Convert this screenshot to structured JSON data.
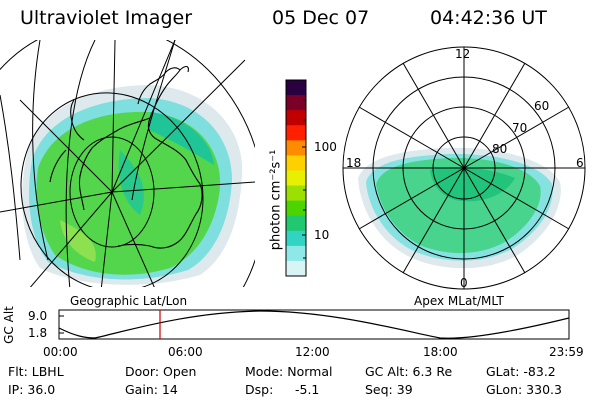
{
  "header": {
    "instrument": "Ultraviolet Imager",
    "date": "05 Dec 07",
    "time": "04:42:36 UT"
  },
  "geo_panel": {
    "label": "Geographic Lat/Lon"
  },
  "apex_panel": {
    "label": "Apex MLat/MLT",
    "lat_labels": [
      "80",
      "70",
      "60"
    ],
    "mlt_labels": [
      "12",
      "18",
      "6",
      "0"
    ]
  },
  "colorbar": {
    "unit_label": "photon cm⁻²s⁻¹",
    "tick_labels": [
      "100",
      "10"
    ],
    "colors": [
      "#2a0040",
      "#7a0028",
      "#c00000",
      "#ff2000",
      "#ff8c00",
      "#ffd000",
      "#e6f000",
      "#9be000",
      "#4cd400",
      "#20c870",
      "#30d4c0",
      "#8fe8e8",
      "#d8f4f4"
    ]
  },
  "orbit_plot": {
    "ylabel": "GC Alt",
    "y_ticks": [
      "9.0",
      "1.8"
    ],
    "x_ticks": [
      "00:00",
      "06:00",
      "12:00",
      "18:00",
      "23:59"
    ],
    "current_marker_time": "04:42:36",
    "marker_color": "#d00000"
  },
  "footer": {
    "flt": "Flt: LBHL",
    "ip": "IP: 36.0",
    "door": "Door: Open",
    "gain": "Gain: 14",
    "mode": "Mode: Normal",
    "dsp": "Dsp:",
    "dsp_value": "-5.1",
    "gc_alt": "GC Alt: 6.3 Re",
    "seq": "Seq: 39",
    "glat": "GLat: -83.2",
    "glon": "GLon: 330.3"
  }
}
